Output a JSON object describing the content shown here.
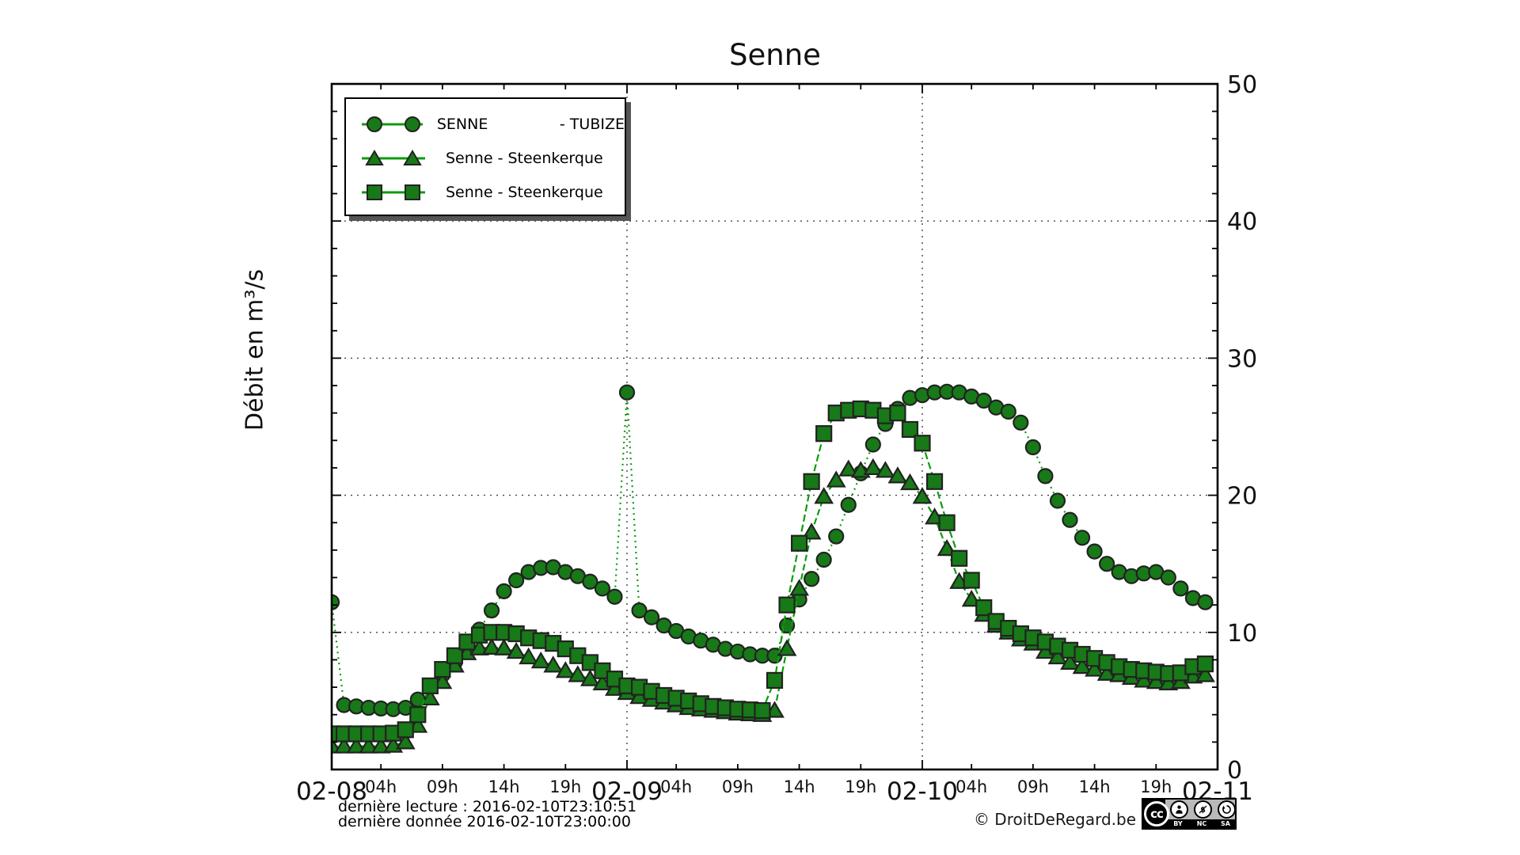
{
  "chart_data": {
    "type": "line",
    "title": "Senne",
    "ylabel": "Débit en m³/s",
    "ylim": [
      0,
      50
    ],
    "y_major_ticks": [
      0,
      10,
      20,
      30,
      40,
      50
    ],
    "y_minor_step": 2,
    "grid": "dotted",
    "legend_position": "upper-left",
    "x_day_labels": [
      "02-08",
      "02-09",
      "02-10",
      "02-11"
    ],
    "x_hour_labels": [
      "04h",
      "09h",
      "14h",
      "19h"
    ],
    "x_hour_positions": [
      4,
      9,
      14,
      19
    ],
    "hours_per_day": 24,
    "x_total_hours": 72,
    "colors": {
      "marker_fill": "#177917",
      "marker_edge": "#222222",
      "line": "#0c9c0c",
      "grid": "#444444",
      "axis": "#000000"
    },
    "series": [
      {
        "name": "SENNE               - TUBIZE",
        "marker": "circle",
        "dash": "2 5",
        "values": [
          12.2,
          4.7,
          4.6,
          4.5,
          4.45,
          4.4,
          4.5,
          5.1,
          6.1,
          6.9,
          7.8,
          8.7,
          10.2,
          11.6,
          13.0,
          13.8,
          14.4,
          14.7,
          14.75,
          14.4,
          14.1,
          13.7,
          13.2,
          12.6,
          27.5,
          11.6,
          11.1,
          10.5,
          10.1,
          9.7,
          9.4,
          9.1,
          8.8,
          8.6,
          8.4,
          8.3,
          8.3,
          10.5,
          12.4,
          13.9,
          15.3,
          17.0,
          19.3,
          21.6,
          23.7,
          25.2,
          26.3,
          27.1,
          27.3,
          27.5,
          27.55,
          27.5,
          27.2,
          26.9,
          26.4,
          26.1,
          25.3,
          23.5,
          21.4,
          19.6,
          18.2,
          16.9,
          15.9,
          15.0,
          14.4,
          14.1,
          14.3,
          14.4,
          14.0,
          13.2,
          12.5,
          12.2
        ]
      },
      {
        "name": "Senne - Steenkerque",
        "marker": "triangle",
        "dash": "8 4",
        "values": [
          1.7,
          1.7,
          1.7,
          1.7,
          1.7,
          1.75,
          2.0,
          3.2,
          5.2,
          6.4,
          7.6,
          8.5,
          8.85,
          8.9,
          8.85,
          8.6,
          8.2,
          7.9,
          7.6,
          7.2,
          6.9,
          6.6,
          6.3,
          5.9,
          5.6,
          5.3,
          5.1,
          4.9,
          4.7,
          4.5,
          4.4,
          4.3,
          4.2,
          4.1,
          4.05,
          4.0,
          4.3,
          8.8,
          13.2,
          17.3,
          19.9,
          21.1,
          21.9,
          21.8,
          22.0,
          21.8,
          21.4,
          20.9,
          19.9,
          18.4,
          16.1,
          13.7,
          12.4,
          11.3,
          10.5,
          10.0,
          9.5,
          9.2,
          8.6,
          8.2,
          7.8,
          7.5,
          7.3,
          7.0,
          6.9,
          6.7,
          6.5,
          6.4,
          6.3,
          6.4,
          6.8,
          6.9
        ]
      },
      {
        "name": "Senne - Steenkerque",
        "marker": "square",
        "dash": "9 4",
        "values": [
          2.6,
          2.6,
          2.6,
          2.6,
          2.6,
          2.65,
          2.9,
          4.0,
          6.1,
          7.3,
          8.3,
          9.3,
          9.8,
          10.0,
          10.0,
          9.9,
          9.6,
          9.4,
          9.2,
          8.8,
          8.3,
          7.8,
          7.2,
          6.6,
          6.1,
          6.0,
          5.7,
          5.4,
          5.2,
          5.0,
          4.8,
          4.6,
          4.5,
          4.4,
          4.35,
          4.3,
          6.5,
          12.0,
          16.5,
          21.0,
          24.5,
          26.0,
          26.2,
          26.3,
          26.2,
          25.8,
          26.0,
          24.8,
          23.8,
          21.0,
          18.0,
          15.4,
          13.8,
          11.8,
          10.8,
          10.3,
          9.9,
          9.6,
          9.3,
          9.0,
          8.7,
          8.4,
          8.1,
          7.8,
          7.5,
          7.3,
          7.2,
          7.1,
          7.0,
          7.05,
          7.5,
          7.7
        ]
      }
    ]
  },
  "footer": {
    "line1": "dernière lecture : 2016-02-10T23:10:51",
    "line2": "dernière donnée  2016-02-10T23:00:00",
    "credit": "© DroitDeRegard.be"
  },
  "cc_badge": {
    "cc": "cc",
    "labels": [
      "BY",
      "NC",
      "SA"
    ]
  }
}
